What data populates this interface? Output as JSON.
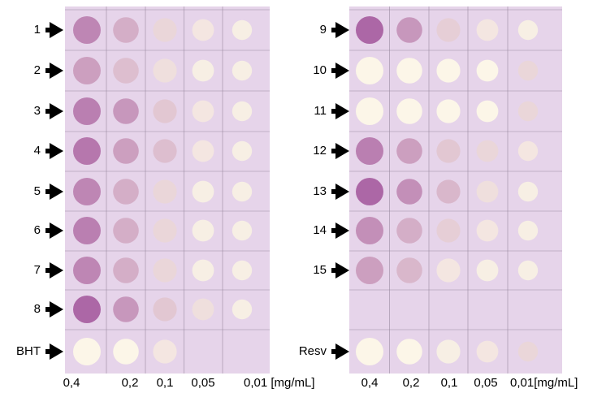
{
  "left_plate": {
    "row_labels": [
      "1",
      "2",
      "3",
      "4",
      "5",
      "6",
      "7",
      "8",
      "BHT"
    ],
    "concentration_labels": [
      "0,4",
      "0,2",
      "0,1",
      "0,05",
      "0,01 [mg/mL]"
    ]
  },
  "right_plate": {
    "row_labels": [
      "9",
      "10",
      "11",
      "12",
      "13",
      "14",
      "15",
      "Resv"
    ],
    "concentration_labels": [
      "0,4",
      "0,2",
      "0,1",
      "0,05",
      "0,01[mg/mL]"
    ]
  }
}
